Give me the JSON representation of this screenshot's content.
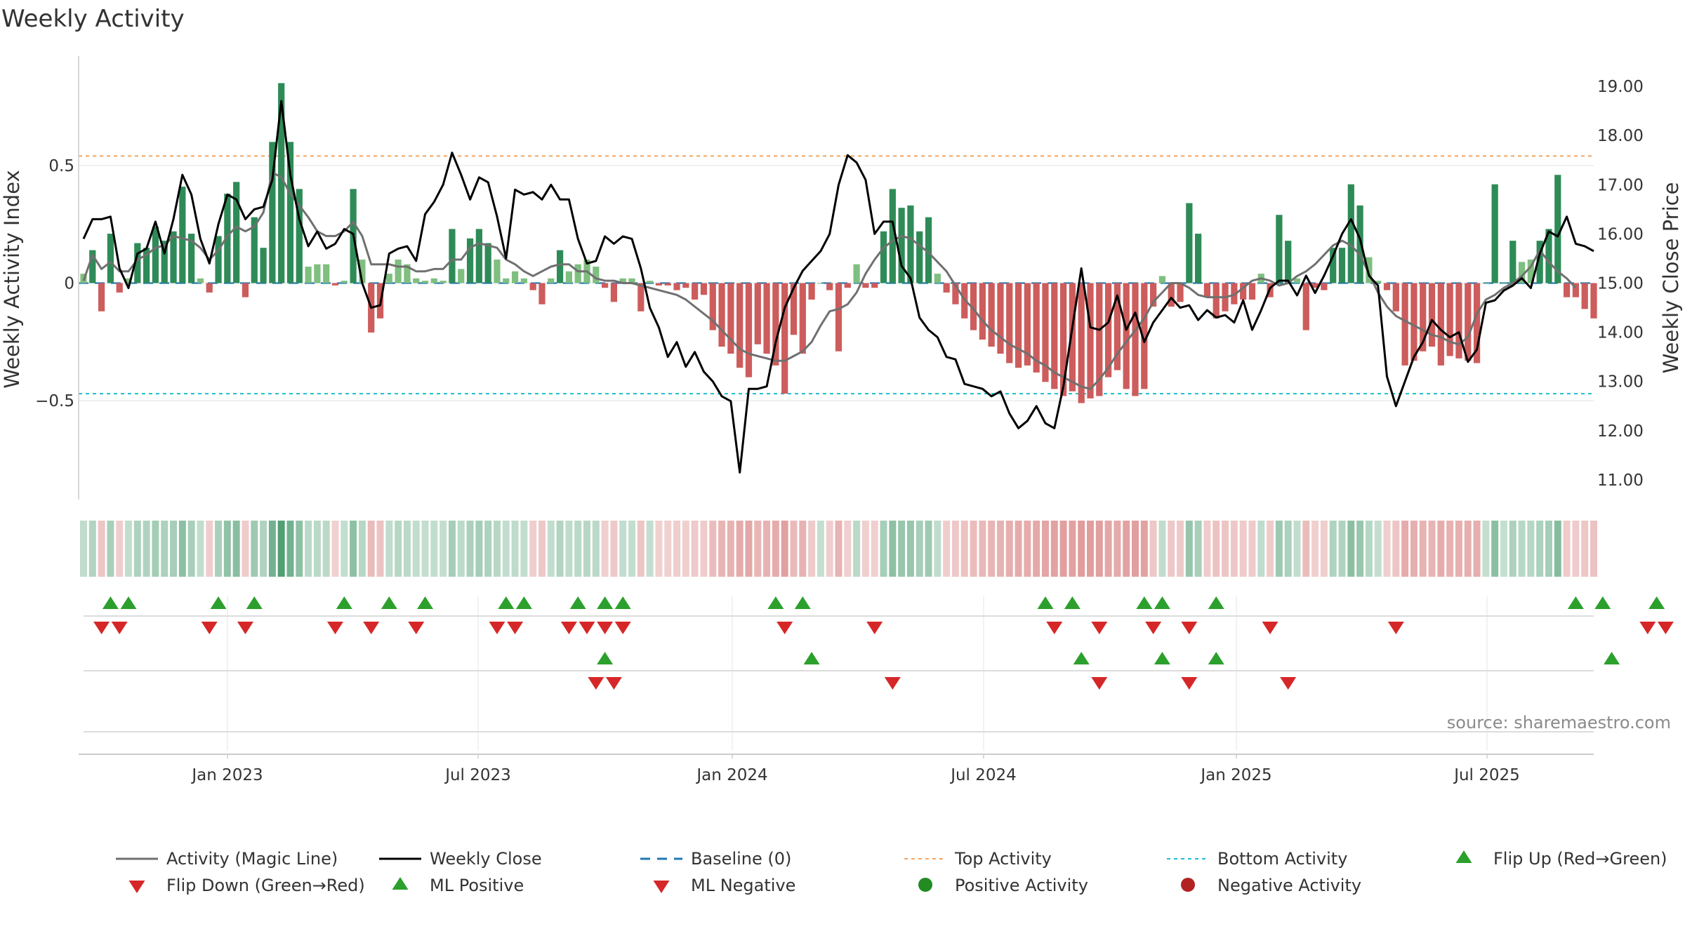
{
  "title": "Weekly Activity",
  "source": "source: sharemaestro.com",
  "colors": {
    "pos_dark": "#2e8b57",
    "pos_light": "#7fbf7f",
    "neg_dark": "#cd5c5c",
    "neg_light": "#e9967a",
    "close_line": "#000000",
    "magic_line": "#707070",
    "baseline": "#1f77b4",
    "top_line": "#f4a460",
    "bottom_line": "#17becf",
    "marker_up": "#2ca02c",
    "marker_down": "#d62728",
    "pos_dot": "#228b22",
    "neg_dot": "#b22222"
  },
  "chart_data": {
    "type": "bar",
    "title": "Weekly Activity",
    "ylabel_left": "Weekly Activity Index",
    "ylabel_right": "Weekly Close Price",
    "left_ticks": [
      {
        "value": 0.5,
        "label": "0.5"
      },
      {
        "value": 0,
        "label": "0"
      },
      {
        "value": -0.5,
        "label": "−0.5"
      }
    ],
    "right_ticks": [
      {
        "value": 19,
        "label": "19.00"
      },
      {
        "value": 18,
        "label": "18.00"
      },
      {
        "value": 17,
        "label": "17.00"
      },
      {
        "value": 16,
        "label": "16.00"
      },
      {
        "value": 15,
        "label": "15.00"
      },
      {
        "value": 14,
        "label": "14.00"
      },
      {
        "value": 13,
        "label": "13.00"
      },
      {
        "value": 12,
        "label": "12.00"
      },
      {
        "value": 11,
        "label": "11.00"
      }
    ],
    "x_ticks": [
      "Jan 2023",
      "Jul 2023",
      "Jan 2024",
      "Jul 2024",
      "Jan 2025",
      "Jul 2025"
    ],
    "left_ylim": [
      -0.92,
      0.92
    ],
    "right_ylim": [
      10.6,
      19.4
    ],
    "top_activity": 0.54,
    "bottom_activity": -0.47,
    "activity": [
      0.04,
      0.14,
      -0.12,
      0.21,
      -0.04,
      0.02,
      0.17,
      0.15,
      0.24,
      0.18,
      0.22,
      0.41,
      0.21,
      0.02,
      -0.04,
      0.2,
      0.38,
      0.43,
      -0.06,
      0.28,
      0.15,
      0.6,
      0.85,
      0.6,
      0.4,
      0.07,
      0.08,
      0.08,
      -0.01,
      0.01,
      0.4,
      0.1,
      -0.21,
      -0.15,
      0.04,
      0.1,
      0.08,
      0.02,
      0.01,
      0.02,
      0.01,
      0.23,
      0.06,
      0.19,
      0.23,
      0.17,
      0.1,
      0.02,
      0.05,
      0.02,
      -0.03,
      -0.09,
      0.02,
      0.14,
      0.05,
      0.08,
      0.1,
      0.07,
      -0.02,
      -0.08,
      0.02,
      0.02,
      -0.12,
      0.01,
      -0.01,
      -0.01,
      -0.03,
      -0.02,
      -0.07,
      -0.05,
      -0.2,
      -0.27,
      -0.3,
      -0.36,
      -0.4,
      -0.26,
      -0.3,
      -0.35,
      -0.47,
      -0.22,
      -0.3,
      -0.07,
      0.0,
      -0.03,
      -0.29,
      -0.02,
      0.08,
      -0.02,
      -0.02,
      0.22,
      0.4,
      0.32,
      0.33,
      0.22,
      0.28,
      0.04,
      -0.04,
      -0.09,
      -0.15,
      -0.2,
      -0.24,
      -0.27,
      -0.3,
      -0.34,
      -0.36,
      -0.35,
      -0.38,
      -0.42,
      -0.45,
      -0.48,
      -0.46,
      -0.51,
      -0.49,
      -0.48,
      -0.4,
      -0.37,
      -0.45,
      -0.48,
      -0.45,
      -0.1,
      0.03,
      -0.1,
      -0.08,
      0.34,
      0.21,
      -0.06,
      -0.15,
      -0.12,
      -0.09,
      -0.07,
      -0.07,
      0.04,
      -0.06,
      0.29,
      0.18,
      0.02,
      -0.2,
      -0.02,
      -0.03,
      0.15,
      0.15,
      0.42,
      0.33,
      0.11,
      0.01,
      -0.03,
      -0.12,
      -0.35,
      -0.33,
      -0.29,
      -0.27,
      -0.35,
      -0.31,
      -0.32,
      -0.33,
      -0.34,
      0.0,
      0.42,
      0.0,
      0.18,
      0.09,
      0.1,
      0.18,
      0.23,
      0.46,
      -0.06,
      -0.06,
      -0.11,
      -0.15
    ],
    "magic_line": [
      0.01,
      0.12,
      0.06,
      0.09,
      0.05,
      0.05,
      0.1,
      0.12,
      0.15,
      0.16,
      0.2,
      0.19,
      0.18,
      0.15,
      0.1,
      0.14,
      0.2,
      0.24,
      0.22,
      0.24,
      0.3,
      0.47,
      0.45,
      0.38,
      0.33,
      0.28,
      0.22,
      0.2,
      0.2,
      0.22,
      0.26,
      0.2,
      0.08,
      0.08,
      0.08,
      0.07,
      0.07,
      0.05,
      0.05,
      0.06,
      0.06,
      0.1,
      0.1,
      0.15,
      0.17,
      0.16,
      0.15,
      0.1,
      0.08,
      0.05,
      0.03,
      0.05,
      0.07,
      0.08,
      0.08,
      0.05,
      0.05,
      0.02,
      0.01,
      0.01,
      0.0,
      0.0,
      -0.01,
      -0.02,
      -0.03,
      -0.04,
      -0.05,
      -0.07,
      -0.1,
      -0.13,
      -0.16,
      -0.2,
      -0.24,
      -0.28,
      -0.3,
      -0.31,
      -0.32,
      -0.33,
      -0.33,
      -0.31,
      -0.29,
      -0.25,
      -0.18,
      -0.12,
      -0.11,
      -0.09,
      -0.04,
      0.04,
      0.1,
      0.15,
      0.18,
      0.2,
      0.19,
      0.16,
      0.13,
      0.09,
      0.05,
      -0.01,
      -0.07,
      -0.11,
      -0.16,
      -0.2,
      -0.23,
      -0.26,
      -0.28,
      -0.3,
      -0.33,
      -0.35,
      -0.38,
      -0.4,
      -0.42,
      -0.44,
      -0.45,
      -0.41,
      -0.36,
      -0.3,
      -0.25,
      -0.2,
      -0.15,
      -0.08,
      -0.04,
      0.0,
      0.0,
      -0.02,
      -0.05,
      -0.06,
      -0.06,
      -0.06,
      -0.05,
      -0.02,
      0.01,
      0.02,
      0.01,
      -0.01,
      0.0,
      0.03,
      0.05,
      0.08,
      0.12,
      0.16,
      0.18,
      0.16,
      0.12,
      0.04,
      -0.04,
      -0.1,
      -0.14,
      -0.16,
      -0.18,
      -0.2,
      -0.22,
      -0.23,
      -0.25,
      -0.26,
      -0.23,
      -0.13,
      -0.07,
      -0.05,
      -0.02,
      0.0,
      0.03,
      0.07,
      0.14,
      0.09,
      0.05,
      0.02,
      -0.02
    ],
    "weekly_close": [
      15.9,
      16.3,
      16.3,
      16.35,
      15.3,
      14.9,
      15.6,
      15.7,
      16.25,
      15.6,
      16.3,
      17.2,
      16.8,
      15.9,
      15.4,
      16.2,
      16.8,
      16.7,
      16.3,
      16.5,
      16.55,
      17.1,
      18.7,
      17.2,
      16.3,
      15.75,
      16.05,
      15.7,
      15.8,
      16.1,
      16.0,
      15.0,
      14.5,
      14.55,
      15.6,
      15.7,
      15.75,
      15.45,
      16.4,
      16.65,
      17.0,
      17.65,
      17.2,
      16.7,
      17.15,
      17.05,
      16.35,
      15.5,
      16.9,
      16.8,
      16.85,
      16.7,
      17.0,
      16.7,
      16.7,
      15.9,
      15.4,
      15.45,
      15.95,
      15.8,
      15.95,
      15.9,
      15.3,
      14.5,
      14.1,
      13.5,
      13.8,
      13.3,
      13.6,
      13.2,
      13.0,
      12.7,
      12.6,
      11.15,
      12.85,
      12.85,
      12.9,
      13.8,
      14.5,
      14.9,
      15.25,
      15.45,
      15.65,
      16.0,
      17.0,
      17.6,
      17.45,
      17.1,
      16.0,
      16.25,
      16.25,
      15.35,
      15.1,
      14.3,
      14.05,
      13.9,
      13.5,
      13.45,
      12.95,
      12.9,
      12.85,
      12.7,
      12.8,
      12.35,
      12.05,
      12.2,
      12.5,
      12.15,
      12.05,
      12.9,
      14.1,
      15.3,
      14.1,
      14.05,
      14.2,
      14.75,
      14.05,
      14.4,
      13.8,
      14.2,
      14.45,
      14.7,
      14.5,
      14.55,
      14.25,
      14.45,
      14.3,
      14.35,
      14.2,
      14.65,
      14.05,
      14.45,
      14.9,
      15.05,
      15.05,
      14.75,
      15.15,
      14.8,
      15.15,
      15.55,
      16.0,
      16.3,
      15.9,
      15.15,
      14.95,
      13.1,
      12.5,
      13.0,
      13.5,
      13.8,
      14.25,
      14.05,
      13.9,
      14.0,
      13.4,
      13.65,
      14.6,
      14.65,
      14.85,
      14.95,
      15.1,
      14.9,
      15.6,
      16.05,
      15.95,
      16.35,
      15.8,
      15.75,
      15.65
    ],
    "flips": {
      "up": [
        3,
        5,
        15,
        19,
        29,
        34,
        38,
        47,
        49,
        55,
        58,
        60,
        77,
        80,
        107,
        110,
        118,
        120,
        126,
        166,
        169,
        175
      ],
      "down": [
        2,
        4,
        14,
        18,
        28,
        32,
        37,
        46,
        48,
        54,
        56,
        58,
        60,
        78,
        88,
        108,
        113,
        119,
        123,
        132,
        146,
        174,
        176
      ]
    },
    "ml": {
      "up": [
        58,
        81,
        111,
        120,
        126,
        170
      ],
      "down": [
        57,
        59,
        90,
        113,
        123,
        134
      ]
    }
  },
  "legend": [
    {
      "label": "Activity (Magic Line)",
      "icon": "solid-gray-line"
    },
    {
      "label": "Weekly Close",
      "icon": "solid-black-line"
    },
    {
      "label": "Baseline (0)",
      "icon": "dashed-blue-line"
    },
    {
      "label": "Top Activity",
      "icon": "dotted-orange-line"
    },
    {
      "label": "Bottom Activity",
      "icon": "dotted-cyan-line"
    },
    {
      "label": "Flip Up (Red→Green)",
      "icon": "green-up-triangle"
    },
    {
      "label": "Flip Down (Green→Red)",
      "icon": "red-down-triangle"
    },
    {
      "label": "ML Positive",
      "icon": "green-up-triangle"
    },
    {
      "label": "ML Negative",
      "icon": "red-down-triangle"
    },
    {
      "label": "Positive Activity",
      "icon": "green-dot"
    },
    {
      "label": "Negative Activity",
      "icon": "red-dot"
    }
  ]
}
